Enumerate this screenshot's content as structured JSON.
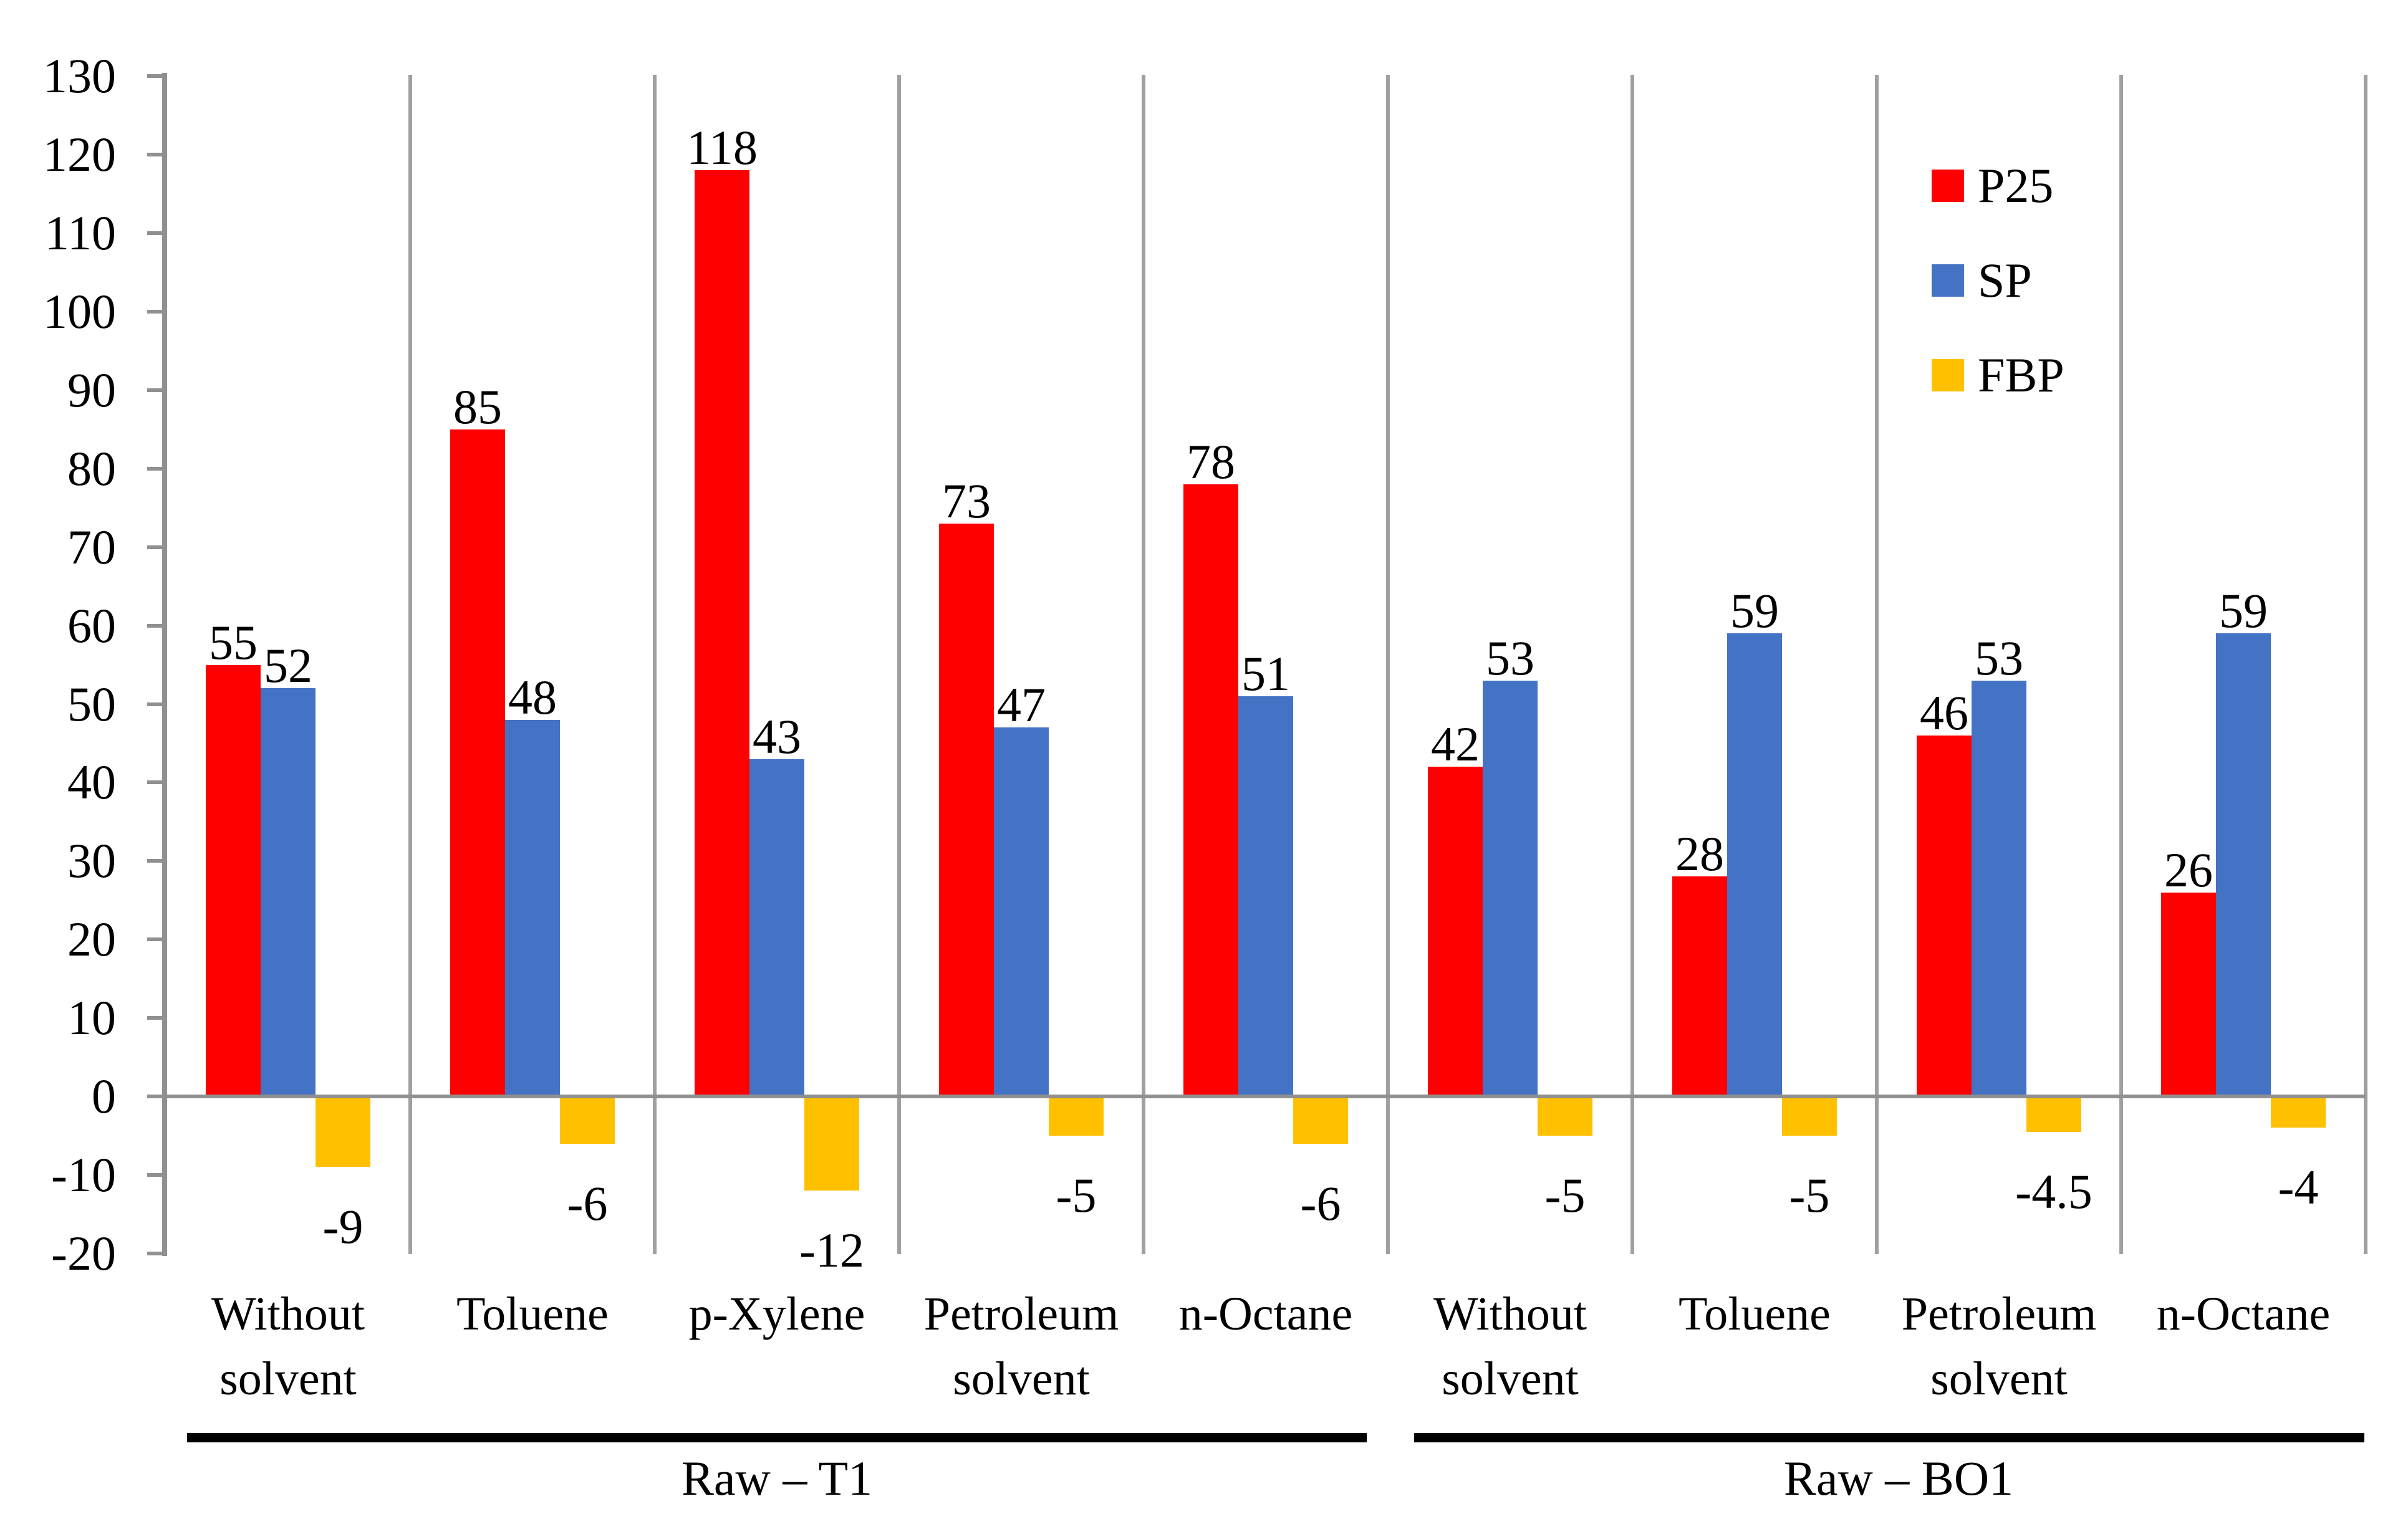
{
  "chart_data": {
    "type": "bar",
    "title": "",
    "xlabel": "",
    "ylabel": "",
    "ylim": [
      -20,
      130
    ],
    "ytick_step": 10,
    "ytick_labels": [
      "-20",
      "-10",
      "0",
      "10",
      "20",
      "30",
      "40",
      "50",
      "60",
      "70",
      "80",
      "90",
      "100",
      "110",
      "120",
      "130"
    ],
    "grid": "vertical-category-separators",
    "legend_position": "top-right-inside",
    "categories": [
      "Without solvent",
      "Toluene",
      "p-Xylene",
      "Petroleum solvent",
      "n-Octane",
      "Without solvent",
      "Toluene",
      "Petroleum solvent",
      "n-Octane"
    ],
    "series": [
      {
        "name": "P25",
        "color": "#FF0000",
        "values": [
          55,
          85,
          118,
          73,
          78,
          42,
          28,
          46,
          26
        ]
      },
      {
        "name": "SP",
        "color": "#4472C4",
        "values": [
          52,
          48,
          43,
          47,
          51,
          53,
          59,
          53,
          59
        ]
      },
      {
        "name": "FBP",
        "color": "#FFC000",
        "values": [
          -9,
          -6,
          -12,
          -5,
          -6,
          -5,
          -5,
          -4.5,
          -4
        ]
      }
    ],
    "data_labels": {
      "P25": [
        "55",
        "85",
        "118",
        "73",
        "78",
        "42",
        "28",
        "46",
        "26"
      ],
      "SP": [
        "52",
        "48",
        "43",
        "47",
        "51",
        "53",
        "59",
        "53",
        "59"
      ],
      "FBP": [
        "-9",
        "-6",
        "-12",
        "-5",
        "-6",
        "-5",
        "-5",
        "-4.5",
        "-4"
      ]
    },
    "group_spans": [
      {
        "label": "Raw – T1",
        "from": 0,
        "to": 4
      },
      {
        "label": "Raw – BO1",
        "from": 5,
        "to": 8
      }
    ],
    "colors": {
      "p25": "#FF0000",
      "sp": "#4472C4",
      "fbp": "#FFC000",
      "axis_line": "#909090",
      "separator_line": "#a0a0a0",
      "group_underline": "#000000",
      "text": "#000000",
      "background": "#FFFFFF"
    }
  }
}
